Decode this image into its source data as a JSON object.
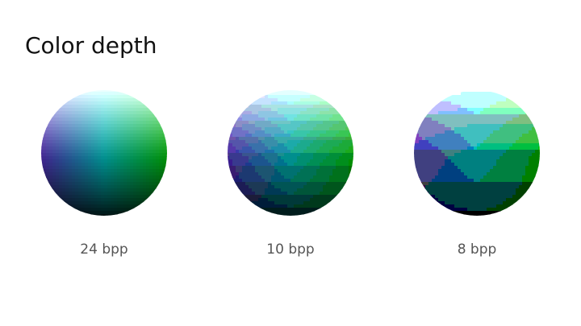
{
  "slide": {
    "title": "Color depth"
  },
  "spheres": [
    {
      "caption": "24 bpp",
      "levels": 0
    },
    {
      "caption": "10 bpp",
      "levels": 10
    },
    {
      "caption": "8 bpp",
      "levels": 5
    }
  ],
  "colors": {
    "text": "#111111",
    "caption": "#555555",
    "background": "#ffffff"
  }
}
